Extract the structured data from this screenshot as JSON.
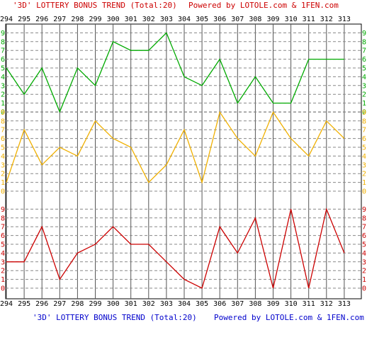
{
  "header": {
    "title": "'3D' LOTTERY BONUS TREND (Total:20)",
    "powered": "Powered by LOTOLE.com & 1FEN.com"
  },
  "footer": {
    "title": "'3D' LOTTERY BONUS TREND (Total:20)",
    "powered": "Powered by LOTOLE.com & 1FEN.com"
  },
  "colors": {
    "title": "#cc0000",
    "footer_title": "#0000cc",
    "top_series": "#00aa00",
    "middle_series": "#f0b000",
    "bottom_series": "#cc0000",
    "grid": "#888888"
  },
  "chart_data": {
    "type": "line",
    "x": [
      294,
      295,
      296,
      297,
      298,
      299,
      300,
      301,
      302,
      303,
      304,
      305,
      306,
      307,
      308,
      309,
      310,
      311,
      312,
      313
    ],
    "ylim": [
      0,
      9
    ],
    "y_ticks": [
      "0",
      "1",
      "2",
      "3",
      "4",
      "5",
      "6",
      "7",
      "8",
      "9"
    ],
    "series": [
      {
        "color": "#00aa00",
        "band": "top",
        "values": [
          5,
          2,
          5,
          0,
          5,
          3,
          8,
          7,
          7,
          9,
          4,
          3,
          6,
          1,
          4,
          1,
          1,
          6,
          6,
          6
        ]
      },
      {
        "color": "#f0b000",
        "band": "middle",
        "values": [
          1,
          7,
          3,
          5,
          4,
          8,
          6,
          5,
          1,
          3,
          7,
          1,
          9,
          6,
          4,
          9,
          6,
          4,
          8,
          6
        ]
      },
      {
        "color": "#cc0000",
        "band": "bottom",
        "values": [
          3,
          3,
          7,
          1,
          4,
          5,
          7,
          5,
          5,
          3,
          1,
          0,
          7,
          4,
          8,
          0,
          9,
          0,
          9,
          4
        ]
      }
    ],
    "grid": true
  }
}
